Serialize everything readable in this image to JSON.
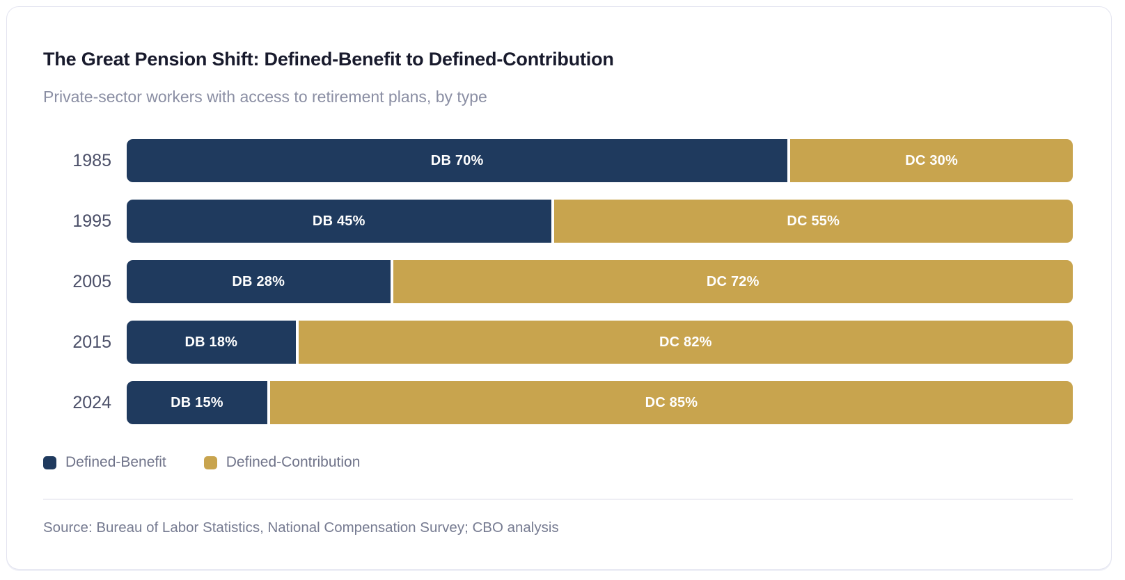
{
  "card": {
    "title": "The Great Pension Shift: Defined-Benefit to Defined-Contribution",
    "subtitle": "Private-sector workers with access to retirement plans, by type",
    "source": "Source: Bureau of Labor Statistics, National Compensation Survey; CBO analysis"
  },
  "legend": {
    "position": "bottom",
    "items": [
      {
        "label": "Defined-Benefit",
        "color": "#1f3a5e"
      },
      {
        "label": "Defined-Contribution",
        "color": "#c8a44e"
      }
    ]
  },
  "chart_data": {
    "type": "bar",
    "orientation": "horizontal",
    "stacked": true,
    "title": "The Great Pension Shift: Defined-Benefit to Defined-Contribution",
    "subtitle": "Private-sector workers with access to retirement plans, by type",
    "categories": [
      "1985",
      "1995",
      "2005",
      "2015",
      "2024"
    ],
    "series": [
      {
        "name": "Defined-Benefit",
        "abbr": "DB",
        "color": "#1f3a5e",
        "values": [
          70,
          45,
          28,
          18,
          15
        ]
      },
      {
        "name": "Defined-Contribution",
        "abbr": "DC",
        "color": "#c8a44e",
        "values": [
          30,
          55,
          72,
          82,
          85
        ]
      }
    ],
    "bar_labels": [
      [
        "DB 70%",
        "DC 30%"
      ],
      [
        "DB 45%",
        "DC 55%"
      ],
      [
        "DB 28%",
        "DC 72%"
      ],
      [
        "DB 18%",
        "DC 82%"
      ],
      [
        "DB 15%",
        "DC 85%"
      ]
    ],
    "value_unit": "%",
    "xlim": [
      0,
      100
    ],
    "grid": false,
    "legend_position": "bottom"
  },
  "colors": {
    "db": "#1f3a5e",
    "dc": "#c8a44e",
    "bar_label_text": "#ffffff",
    "card_border": "#e3e4f0",
    "title_text": "#181a2c",
    "subtitle_text": "#8a8ea3",
    "year_text": "#4b4f68",
    "legend_text": "#6f7389",
    "source_text": "#767b91",
    "divider": "#eeeef4"
  }
}
